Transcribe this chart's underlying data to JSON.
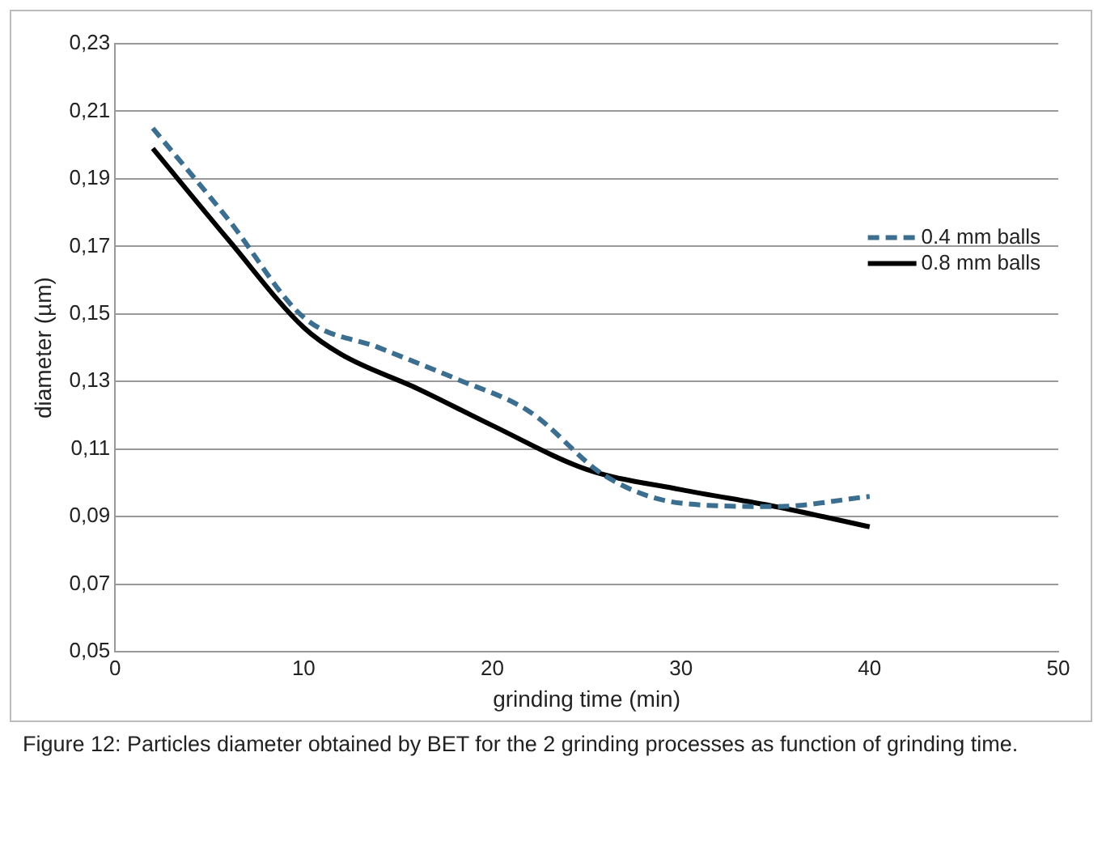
{
  "chart_data": {
    "type": "line",
    "xlabel": "grinding time (min)",
    "ylabel": "diameter (µm)",
    "xlim": [
      0,
      50
    ],
    "xticks": [
      0,
      10,
      20,
      30,
      40,
      50
    ],
    "ylim": [
      0.05,
      0.23
    ],
    "yticks": [
      {
        "value": 0.05,
        "label": "0,05"
      },
      {
        "value": 0.07,
        "label": "0,07"
      },
      {
        "value": 0.09,
        "label": "0,09"
      },
      {
        "value": 0.11,
        "label": "0,11"
      },
      {
        "value": 0.13,
        "label": "0,13"
      },
      {
        "value": 0.15,
        "label": "0,15"
      },
      {
        "value": 0.17,
        "label": "0,17"
      },
      {
        "value": 0.19,
        "label": "0,19"
      },
      {
        "value": 0.21,
        "label": "0,21"
      },
      {
        "value": 0.23,
        "label": "0,23"
      }
    ],
    "grid": "y",
    "legend": "right",
    "marker": "none",
    "series": [
      {
        "name": "0.4 mm balls",
        "color": "#3b6e8f",
        "line_style": "dashed",
        "x": [
          2,
          6,
          10,
          14,
          18,
          22,
          26,
          30,
          35,
          40
        ],
        "values": [
          0.205,
          0.178,
          0.149,
          0.14,
          0.131,
          0.121,
          0.102,
          0.094,
          0.093,
          0.096
        ]
      },
      {
        "name": "0.8 mm balls",
        "color": "#000000",
        "line_style": "solid",
        "x": [
          2,
          6,
          10,
          12,
          16,
          20,
          25,
          30,
          35,
          40
        ],
        "values": [
          0.199,
          0.172,
          0.146,
          0.138,
          0.128,
          0.117,
          0.104,
          0.098,
          0.093,
          0.087
        ]
      }
    ],
    "annotations": [
      "Figure 12: Particles diameter obtained by BET for the 2 grinding processes as function of grinding time."
    ]
  }
}
